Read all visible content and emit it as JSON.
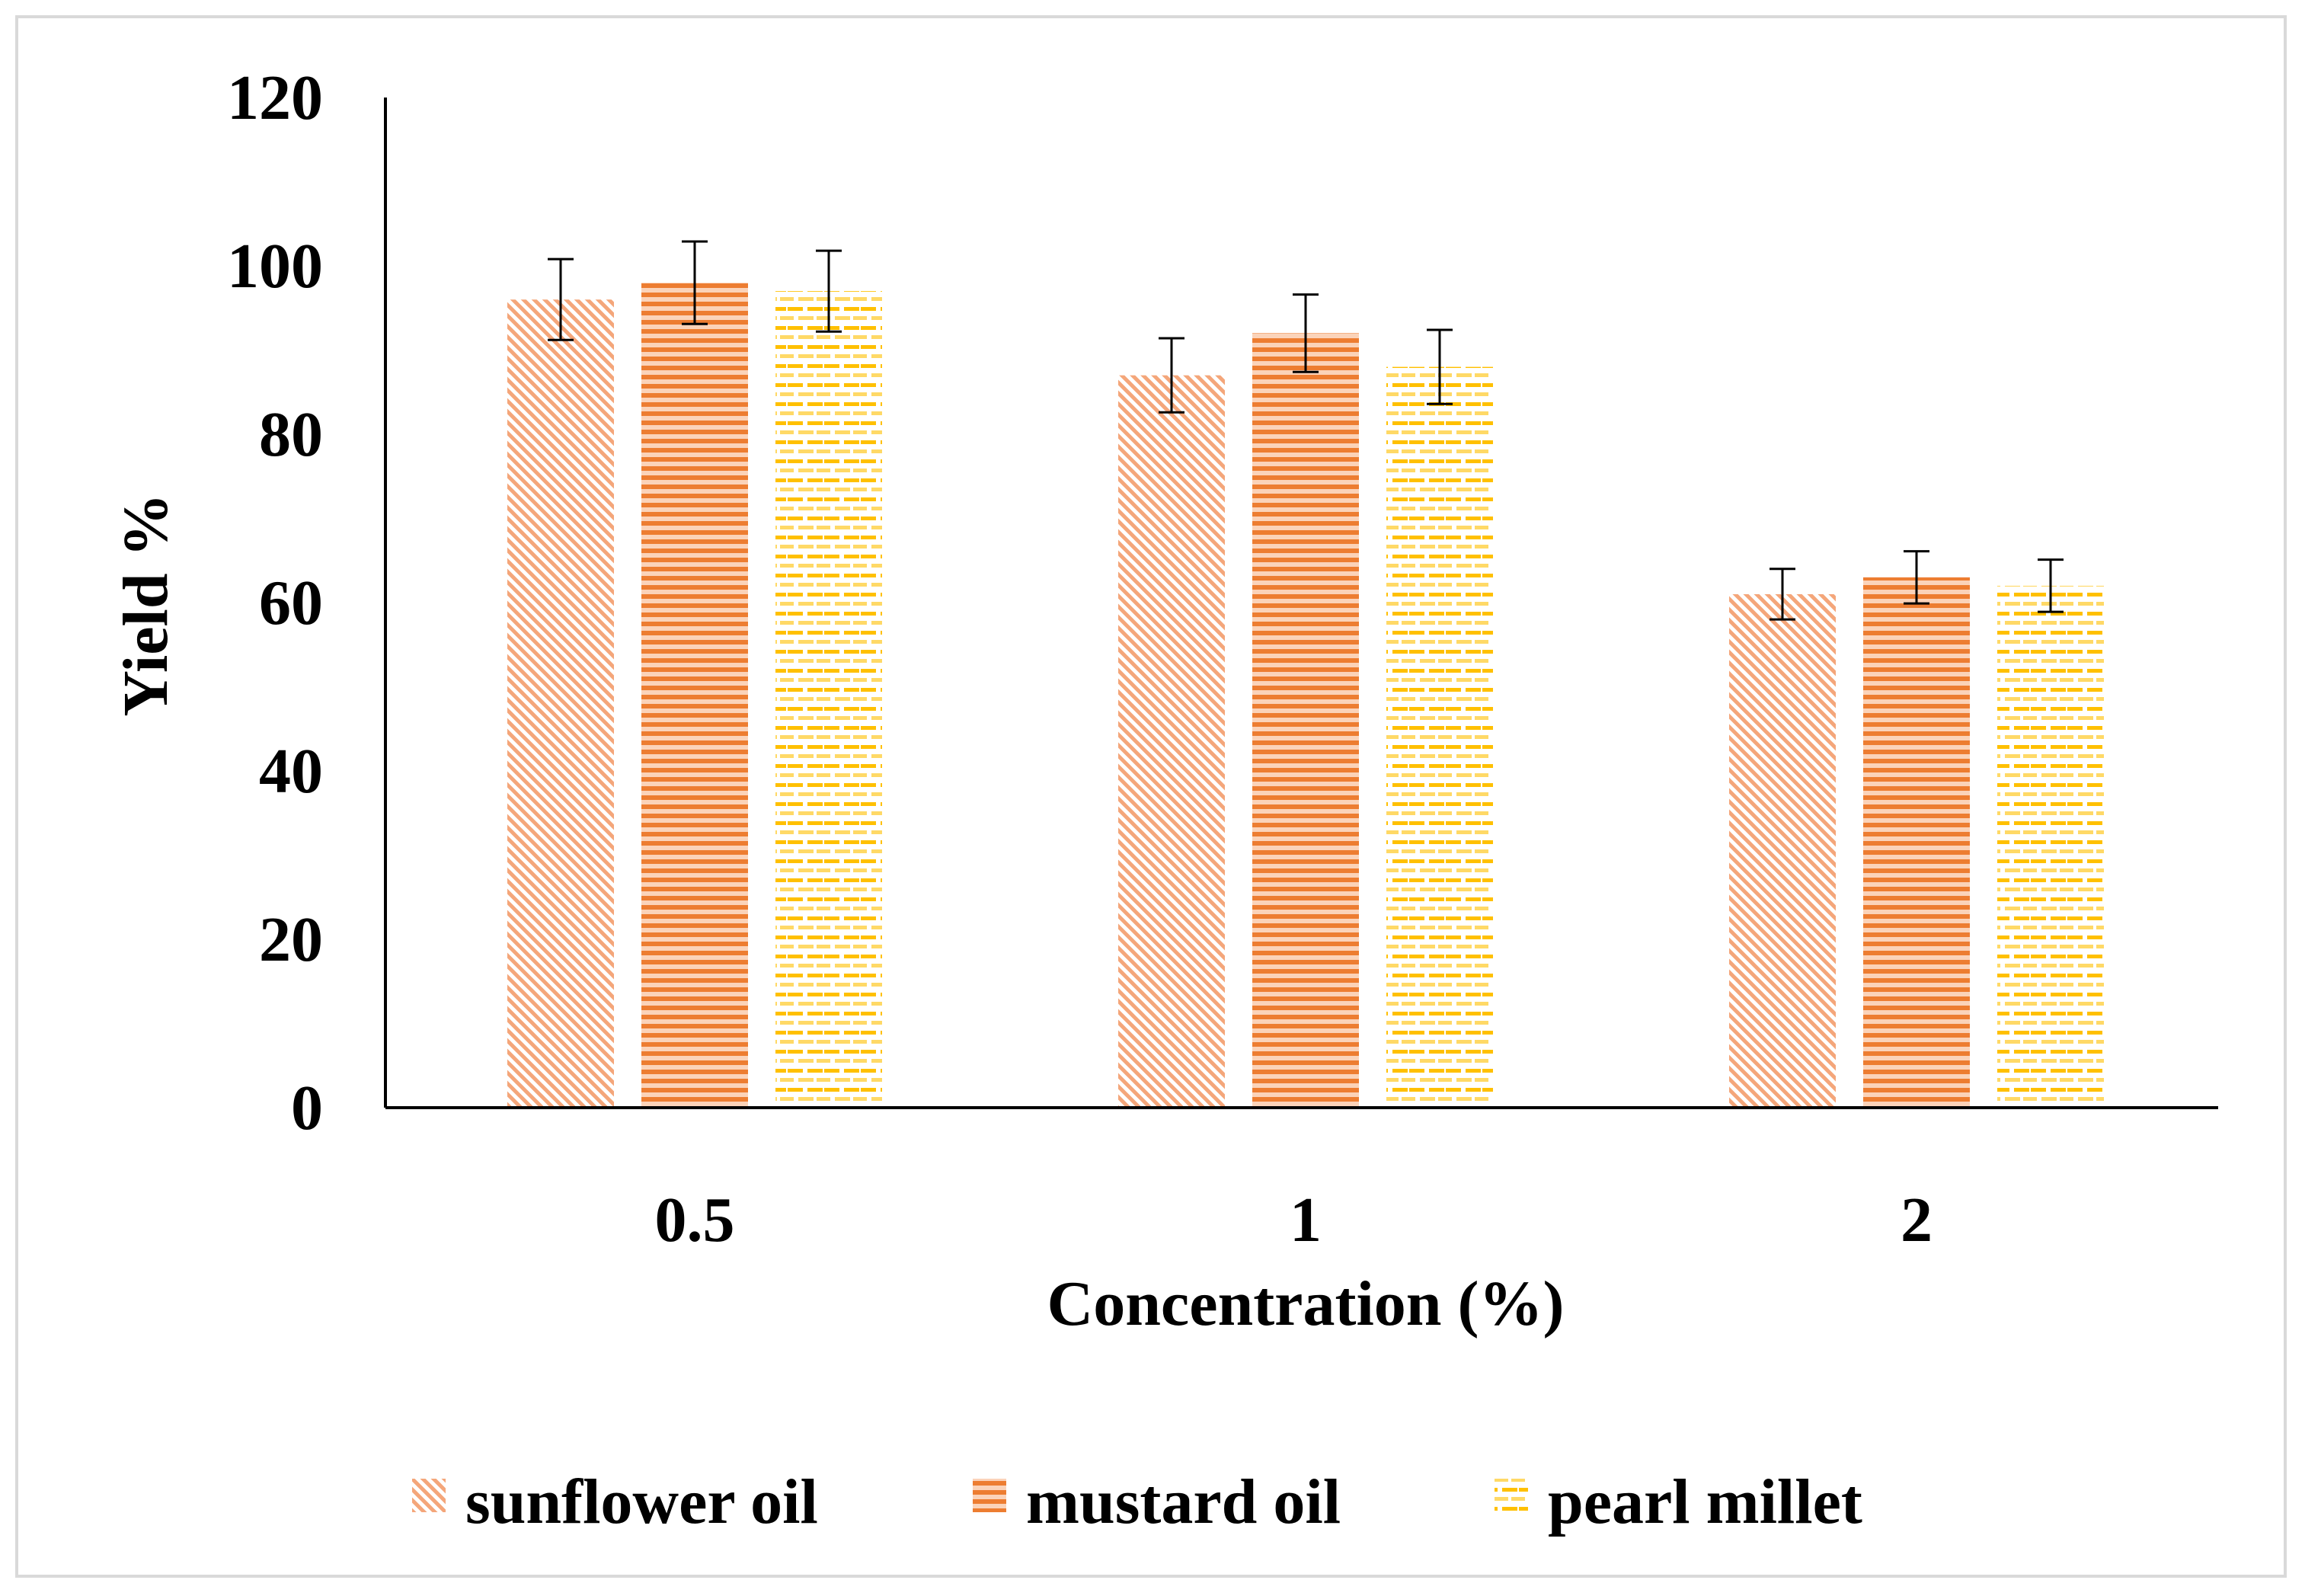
{
  "chart_data": {
    "type": "bar",
    "title": "",
    "xlabel": "Concentration (%)",
    "ylabel": "Yield %",
    "categories": [
      "0.5",
      "1",
      "2"
    ],
    "ylim": [
      0,
      120
    ],
    "yticks": [
      0,
      20,
      40,
      60,
      80,
      100,
      120
    ],
    "ytick_labels": [
      "0",
      "20",
      "40",
      "60",
      "80",
      "100",
      "120"
    ],
    "grid": false,
    "legend_position": "bottom",
    "series": [
      {
        "name": "sunflower oil",
        "pattern": "diagonal",
        "color": "#f4a67a",
        "values": [
          96,
          87,
          61
        ],
        "errors": [
          4.8,
          4.4,
          3.0
        ]
      },
      {
        "name": "mustard oil",
        "pattern": "horizontal",
        "color": "#ed7d31",
        "values": [
          98,
          92,
          63
        ],
        "errors": [
          4.9,
          4.6,
          3.1
        ]
      },
      {
        "name": "pearl millet",
        "pattern": "dashes",
        "color": "#ffc000",
        "values": [
          97,
          88,
          62
        ],
        "errors": [
          4.8,
          4.4,
          3.1
        ]
      }
    ]
  }
}
